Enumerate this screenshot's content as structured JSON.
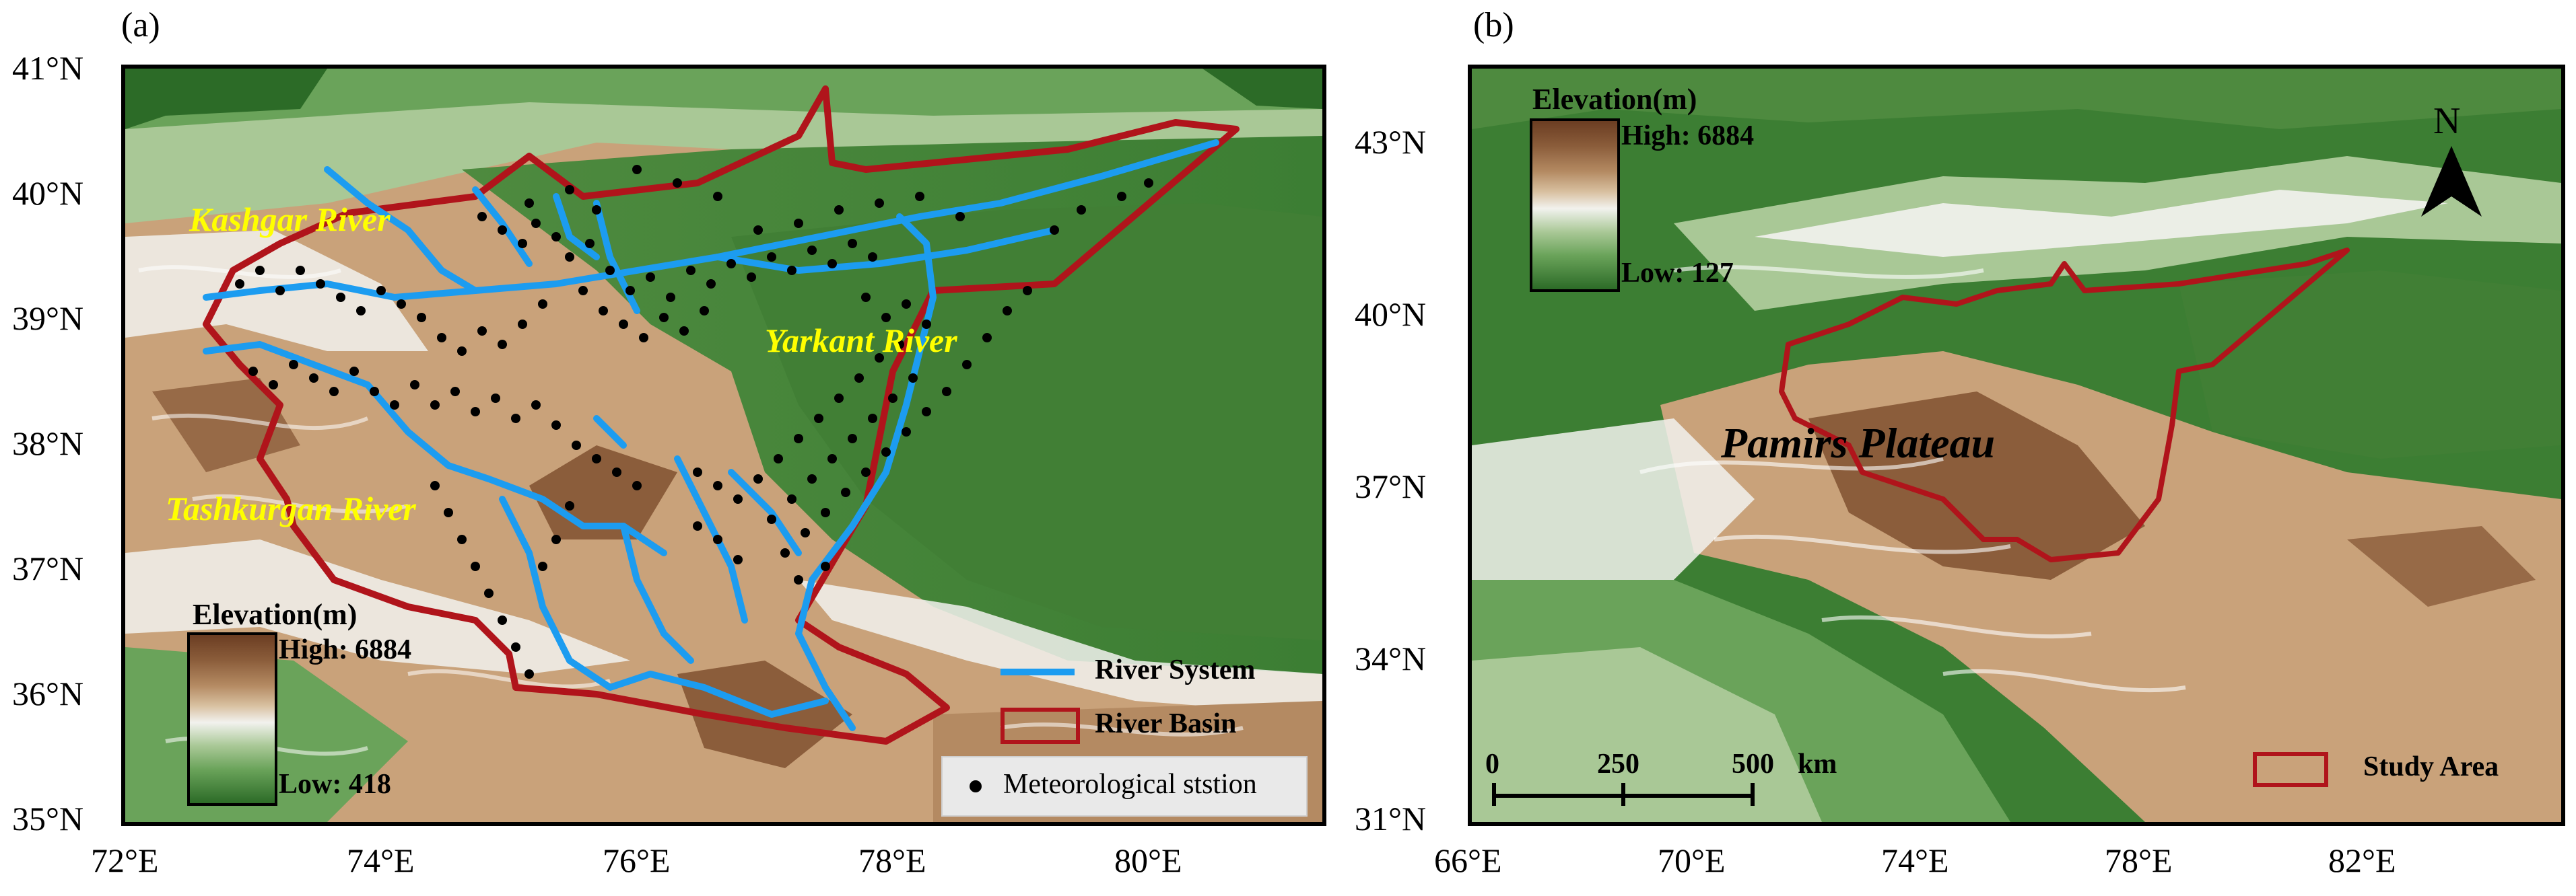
{
  "panel_a": {
    "letter": "(a)",
    "lat_ticks": [
      "41°N",
      "40°N",
      "39°N",
      "38°N",
      "37°N",
      "36°N",
      "35°N"
    ],
    "lon_ticks": [
      "72°E",
      "74°E",
      "76°E",
      "78°E",
      "80°E"
    ],
    "rivers": {
      "kashgar": "Kashgar River",
      "yarkant": "Yarkant River",
      "tashkurgan": "Tashkurgan River"
    },
    "elevation_legend": {
      "title": "Elevation(m)",
      "high": "High: 6884",
      "low": "Low: 418"
    },
    "key": {
      "river_system": "River System",
      "river_basin": "River Basin",
      "station": "Meteorological ststion"
    },
    "colors": {
      "river": "#1c9cf0",
      "basin": "#b0141b",
      "station": "#000000"
    }
  },
  "panel_b": {
    "letter": "(b)",
    "lat_ticks": [
      "43°N",
      "40°N",
      "37°N",
      "34°N",
      "31°N"
    ],
    "lon_ticks": [
      "66°E",
      "70°E",
      "74°E",
      "78°E",
      "82°E"
    ],
    "region_label": "Pamirs Plateau",
    "elevation_legend": {
      "title": "Elevation(m)",
      "high": "High: 6884",
      "low": "Low: 127"
    },
    "north_arrow": "N",
    "scale_bar": {
      "labels": [
        "0",
        "250",
        "500"
      ],
      "unit": "km"
    },
    "study_area": "Study Area"
  }
}
